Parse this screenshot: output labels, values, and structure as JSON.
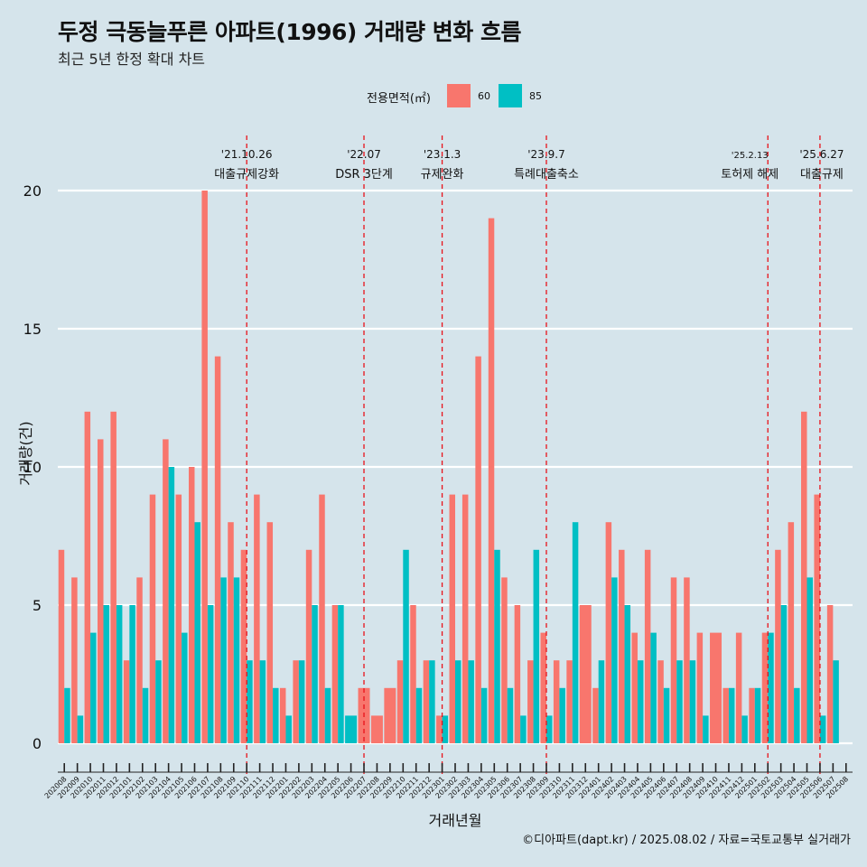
{
  "title": "두정 극동늘푸른 아파트(1996) 거래량 변화 흐름",
  "subtitle": "최근 5년 한정 확대 차트",
  "caption": "©디아파트(dapt.kr) / 2025.08.02 / 자료=국토교통부 실거래가",
  "legend": {
    "title": "전용면적(㎡)",
    "items": [
      {
        "label": "60",
        "color": "#f8766d"
      },
      {
        "label": "85",
        "color": "#00bfc4"
      }
    ]
  },
  "chart_data": {
    "type": "bar",
    "title": "두정 극동늘푸른 아파트(1996) 거래량 변화 흐름",
    "xlabel": "거래년월",
    "ylabel": "거래량(건)",
    "ylim": [
      -1.5,
      22
    ],
    "yticks": [
      0,
      5,
      10,
      15,
      20
    ],
    "grid": true,
    "legend_position": "top",
    "categories": [
      "202008",
      "202009",
      "202010",
      "202011",
      "202012",
      "202101",
      "202102",
      "202103",
      "202104",
      "202105",
      "202106",
      "202107",
      "202108",
      "202109",
      "202110",
      "202111",
      "202112",
      "202201",
      "202202",
      "202203",
      "202204",
      "202205",
      "202206",
      "202207",
      "202208",
      "202209",
      "202210",
      "202211",
      "202212",
      "202301",
      "202302",
      "202303",
      "202304",
      "202305",
      "202306",
      "202307",
      "202308",
      "202309",
      "202310",
      "202311",
      "202312",
      "202401",
      "202402",
      "202403",
      "202404",
      "202405",
      "202406",
      "202407",
      "202408",
      "202409",
      "202410",
      "202411",
      "202412",
      "202501",
      "202502",
      "202503",
      "202504",
      "202505",
      "202506",
      "202507",
      "202508"
    ],
    "series": [
      {
        "name": "60",
        "color": "#f8766d",
        "values": [
          7,
          6,
          12,
          11,
          12,
          3,
          6,
          9,
          11,
          9,
          10,
          20,
          14,
          8,
          7,
          9,
          8,
          2,
          3,
          7,
          9,
          5,
          null,
          2,
          1,
          2,
          3,
          5,
          3,
          1,
          9,
          9,
          14,
          19,
          6,
          5,
          3,
          4,
          3,
          3,
          5,
          2,
          8,
          7,
          4,
          7,
          3,
          6,
          6,
          4,
          4,
          2,
          4,
          2,
          4,
          7,
          8,
          12,
          9,
          5,
          null
        ]
      },
      {
        "name": "85",
        "color": "#00bfc4",
        "values": [
          2,
          1,
          4,
          5,
          5,
          5,
          2,
          3,
          10,
          4,
          8,
          5,
          6,
          6,
          3,
          3,
          2,
          1,
          3,
          5,
          2,
          5,
          1,
          null,
          null,
          null,
          7,
          2,
          3,
          1,
          3,
          3,
          2,
          7,
          2,
          1,
          7,
          1,
          2,
          8,
          null,
          3,
          6,
          5,
          3,
          4,
          2,
          3,
          3,
          1,
          null,
          2,
          1,
          2,
          4,
          5,
          2,
          6,
          1,
          3,
          null
        ]
      }
    ],
    "single_bars": {
      "202206": "85",
      "202207": "60",
      "202208": "60",
      "202209": "60",
      "202312": "60",
      "202410": "60"
    },
    "annotations": [
      {
        "category": "202110",
        "date": "'21.10.26",
        "label": "대출규제강화"
      },
      {
        "category": "202207",
        "date": "'22.07",
        "label": "DSR 3단계"
      },
      {
        "category": "202301",
        "date": "'23.1.3",
        "label": "규제완화"
      },
      {
        "category": "202309",
        "date": "'23.9.7",
        "label": "특례대출축소"
      },
      {
        "category": "202502",
        "date": "'25.2.13",
        "label": "토허제 해제"
      },
      {
        "category": "202506",
        "date": "'25.6.27",
        "label": "대출규제"
      }
    ]
  }
}
